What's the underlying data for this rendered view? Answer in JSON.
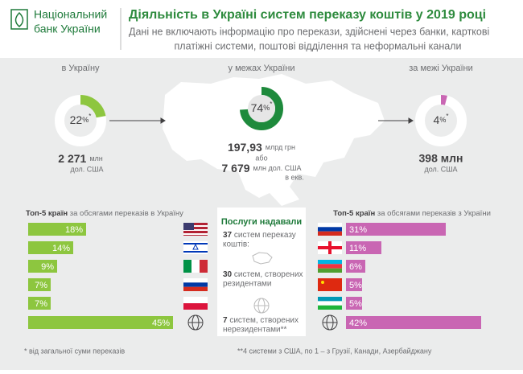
{
  "header": {
    "logo": [
      "Національний",
      "банк України"
    ],
    "title": "Діяльність в Україні систем переказу коштів у 2019 році",
    "subtitle": [
      "Дані не включають інформацію про перекази, здійснені через банки, карткові",
      "платіжні системи, поштові відділення та неформальні канали"
    ]
  },
  "flows": {
    "inbound": {
      "label": "в Україну",
      "share": 22,
      "share_unit": "%",
      "share_note": "*",
      "amount": "2 271",
      "unit": "млн",
      "currency": "дол. США"
    },
    "domestic": {
      "label": "у межах України",
      "share": 74,
      "share_unit": "%",
      "share_note": "*",
      "amount": "197,93",
      "unit": "млрд грн",
      "or": "або",
      "amount_alt": "7 679",
      "unit_alt": "млн дол. США",
      "equiv": "в екв."
    },
    "outbound": {
      "label": "за межі України",
      "share": 4,
      "share_unit": "%",
      "share_note": "*",
      "amount": "398 млн",
      "currency": "дол. США"
    }
  },
  "top_in": {
    "title_bold": "Топ-5 країн",
    "title_rest": " за обсягами переказів в Україну",
    "values": [
      18,
      14,
      9,
      7,
      7,
      45
    ],
    "value_labels": [
      "18%",
      "14%",
      "9%",
      "7%",
      "7%",
      "45%"
    ],
    "color": "#8dc63f"
  },
  "top_out": {
    "title_bold": "Топ-5 країн",
    "title_rest": " за обсягами переказів з України",
    "values": [
      31,
      11,
      6,
      5,
      5,
      42
    ],
    "value_labels": [
      "31%",
      "11%",
      "6%",
      "5%",
      "5%",
      "42%"
    ],
    "color": "#c966b3"
  },
  "providers": {
    "title": "Послуги надавали",
    "total_num": "37",
    "total_text": " систем переказу",
    "total_text2": "коштів:",
    "residents_num": "30",
    "residents_text": " систем, створених",
    "residents_text2": "резидентами",
    "nonres_num": "7",
    "nonres_text": " систем, створених",
    "nonres_text2": "нерезидентами**"
  },
  "footnotes": [
    "* від загальної суми переказів",
    "**4 системи з США, по 1 – з Грузії, Канади, Азербайджану"
  ]
}
